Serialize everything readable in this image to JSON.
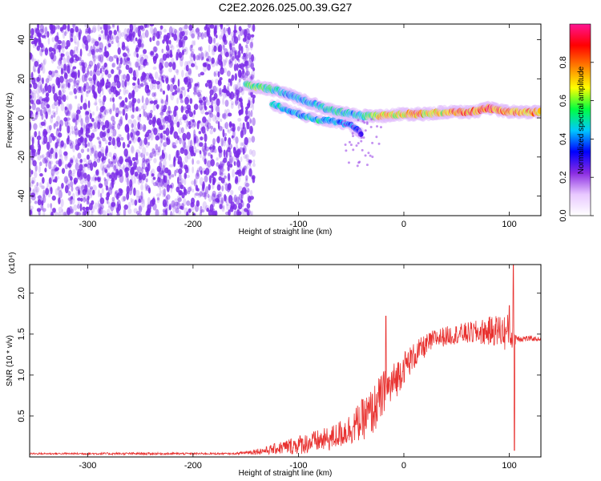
{
  "title": "C2E2.2026.025.00.39.G27",
  "chart_data": [
    {
      "type": "heatmap",
      "xlabel": "Height of straight line (km)",
      "ylabel": "Frequency (Hz)",
      "xlim": [
        -355,
        130
      ],
      "ylim": [
        -50,
        48
      ],
      "xticks": [
        -300,
        -200,
        -100,
        0,
        100
      ],
      "yticks": [
        -40,
        -20,
        0,
        20,
        40
      ],
      "colorbar": {
        "label": "Normalized spectral amplitude",
        "range": [
          0.0,
          1.0
        ],
        "ticks": [
          "0.0",
          "0.2",
          "0.4",
          "0.6",
          "0.8"
        ],
        "tick_values": [
          0.0,
          0.2,
          0.4,
          0.6,
          0.8
        ],
        "colors": [
          "#ffffff",
          "#e8c8ff",
          "#8a2be2",
          "#0000ff",
          "#00c8ff",
          "#00ff40",
          "#ffff00",
          "#ff8000",
          "#ff0000",
          "#ff1493"
        ]
      },
      "noise_region": {
        "x_range": [
          -355,
          -150
        ],
        "amplitude": 0.15,
        "color": "#7b2be8"
      },
      "signal_track": [
        {
          "x": -150,
          "y": 17,
          "amp": 0.55
        },
        {
          "x": -140,
          "y": 16,
          "amp": 0.6
        },
        {
          "x": -130,
          "y": 15,
          "amp": 0.55
        },
        {
          "x": -120,
          "y": 14,
          "amp": 0.5
        },
        {
          "x": -110,
          "y": 12,
          "amp": 0.45
        },
        {
          "x": -100,
          "y": 10,
          "amp": 0.45
        },
        {
          "x": -90,
          "y": 8,
          "amp": 0.45
        },
        {
          "x": -80,
          "y": 6,
          "amp": 0.45
        },
        {
          "x": -70,
          "y": 4,
          "amp": 0.5
        },
        {
          "x": -60,
          "y": 3,
          "amp": 0.5
        },
        {
          "x": -50,
          "y": 2,
          "amp": 0.45
        },
        {
          "x": -40,
          "y": 1,
          "amp": 0.5
        },
        {
          "x": -30,
          "y": 1,
          "amp": 0.6
        },
        {
          "x": -20,
          "y": 1,
          "amp": 0.75
        },
        {
          "x": -10,
          "y": 1.5,
          "amp": 0.7
        },
        {
          "x": 0,
          "y": 2,
          "amp": 0.7
        },
        {
          "x": 10,
          "y": 2,
          "amp": 0.8
        },
        {
          "x": 20,
          "y": 2,
          "amp": 0.75
        },
        {
          "x": 30,
          "y": 2.5,
          "amp": 0.7
        },
        {
          "x": 40,
          "y": 3,
          "amp": 0.7
        },
        {
          "x": 50,
          "y": 3,
          "amp": 0.85
        },
        {
          "x": 60,
          "y": 3,
          "amp": 0.8
        },
        {
          "x": 70,
          "y": 3.5,
          "amp": 0.8
        },
        {
          "x": 80,
          "y": 5,
          "amp": 0.9
        },
        {
          "x": 90,
          "y": 4,
          "amp": 0.8
        },
        {
          "x": 100,
          "y": 3,
          "amp": 0.8
        },
        {
          "x": 110,
          "y": 3,
          "amp": 0.8
        },
        {
          "x": 120,
          "y": 3,
          "amp": 0.8
        },
        {
          "x": 130,
          "y": 3,
          "amp": 0.8
        }
      ],
      "secondary_track": [
        {
          "x": -125,
          "y": 7,
          "amp": 0.5
        },
        {
          "x": -110,
          "y": 4,
          "amp": 0.45
        },
        {
          "x": -95,
          "y": 1,
          "amp": 0.45
        },
        {
          "x": -80,
          "y": -1,
          "amp": 0.5
        },
        {
          "x": -65,
          "y": -2,
          "amp": 0.45
        },
        {
          "x": -50,
          "y": -4,
          "amp": 0.4
        },
        {
          "x": -40,
          "y": -8,
          "amp": 0.3
        }
      ]
    },
    {
      "type": "line",
      "xlabel": "Height of straight line (km)",
      "ylabel": "SNR (10 * v/v)",
      "y_multiplier": "(x10⁴)",
      "xlim": [
        -355,
        130
      ],
      "ylim": [
        0,
        2.35
      ],
      "xticks": [
        -300,
        -200,
        -100,
        0,
        100
      ],
      "yticks": [
        "0.5",
        "1.0",
        "1.5",
        "2.0"
      ],
      "ytick_values": [
        0.5,
        1.0,
        1.5,
        2.0
      ],
      "series_color": "#e8312f",
      "envelope": [
        {
          "x": -355,
          "mean": 0.04,
          "noise": 0.01
        },
        {
          "x": -250,
          "mean": 0.04,
          "noise": 0.015
        },
        {
          "x": -160,
          "mean": 0.04,
          "noise": 0.01
        },
        {
          "x": -130,
          "mean": 0.08,
          "noise": 0.05
        },
        {
          "x": -100,
          "mean": 0.15,
          "noise": 0.12
        },
        {
          "x": -70,
          "mean": 0.22,
          "noise": 0.15
        },
        {
          "x": -50,
          "mean": 0.35,
          "noise": 0.2
        },
        {
          "x": -40,
          "mean": 0.45,
          "noise": 0.25
        },
        {
          "x": -30,
          "mean": 0.55,
          "noise": 0.3
        },
        {
          "x": -20,
          "mean": 0.75,
          "noise": 0.3
        },
        {
          "x": -10,
          "mean": 0.9,
          "noise": 0.25
        },
        {
          "x": 0,
          "mean": 1.1,
          "noise": 0.2
        },
        {
          "x": 15,
          "mean": 1.3,
          "noise": 0.15
        },
        {
          "x": 30,
          "mean": 1.45,
          "noise": 0.12
        },
        {
          "x": 50,
          "mean": 1.5,
          "noise": 0.12
        },
        {
          "x": 70,
          "mean": 1.52,
          "noise": 0.15
        },
        {
          "x": 90,
          "mean": 1.55,
          "noise": 0.2
        },
        {
          "x": 100,
          "mean": 1.5,
          "noise": 0.25
        },
        {
          "x": 108,
          "mean": 1.45,
          "noise": 0.05
        },
        {
          "x": 130,
          "mean": 1.44,
          "noise": 0.02
        }
      ],
      "spikes": [
        {
          "x": -17,
          "y": 1.72
        },
        {
          "x": 104,
          "y": 2.35
        },
        {
          "x": 105,
          "y": 0.08
        },
        {
          "x": 100,
          "y": 1.85
        }
      ]
    }
  ]
}
